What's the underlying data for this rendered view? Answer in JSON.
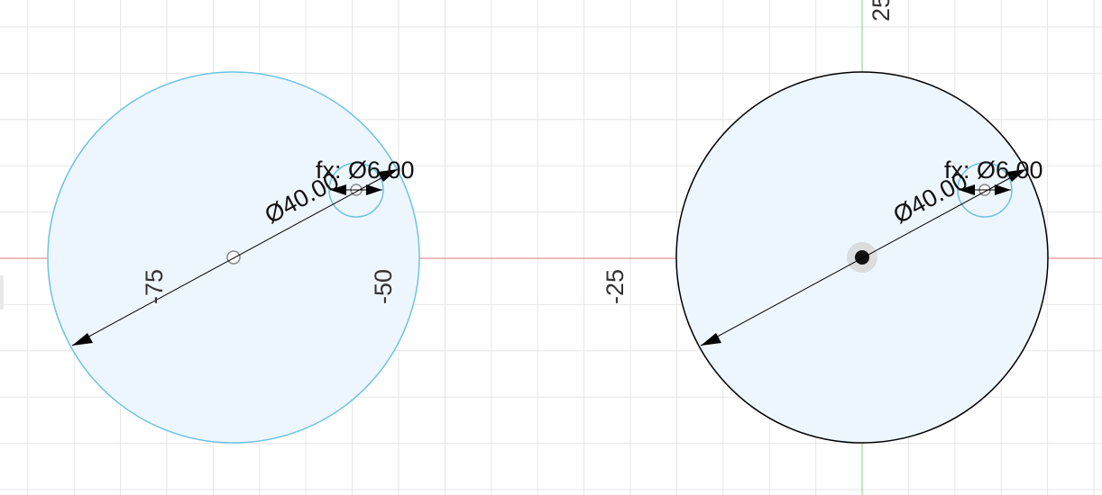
{
  "viewport": {
    "colors": {
      "background": "#ffffff",
      "grid": "#e6e6e6",
      "x_axis": "#e07a7a",
      "y_axis": "#7ed07e",
      "profile_fill": "#eef6fd",
      "sketch_curve_selected": "#6ec3e4",
      "sketch_curve_fixed": "#000000",
      "dimension": "#000000"
    },
    "axis_labels": {
      "x_minus_75": "-75",
      "x_minus_50": "-50",
      "x_minus_25": "-25",
      "y_25": "25"
    },
    "left_sketch": {
      "outer_diameter_label": "Ø40.00",
      "inner_diameter_label": "fx: Ø6.00"
    },
    "right_sketch": {
      "outer_diameter_label": "Ø40.00",
      "inner_diameter_label": "fx: Ø6.00"
    }
  }
}
